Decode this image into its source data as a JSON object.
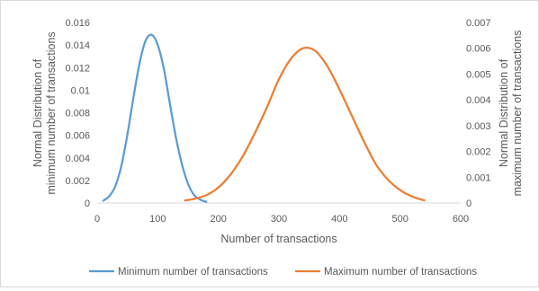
{
  "chart_data": {
    "type": "line",
    "title": "",
    "xlabel": "Number of transactions",
    "ylabel": "Normal Distribution of minimum number of transactions",
    "y2label": "Normal Distribution of maximum number of transactions",
    "xlim": [
      0,
      600
    ],
    "ylim": [
      0,
      0.016
    ],
    "y2lim": [
      0,
      0.007
    ],
    "x_ticks": [
      "0",
      "100",
      "200",
      "300",
      "400",
      "500",
      "600"
    ],
    "y_ticks": [
      "0",
      "0.002",
      "0.004",
      "0.006",
      "0.008",
      "0.01",
      "0.012",
      "0.014",
      "0.016"
    ],
    "y2_ticks": [
      "0",
      "0.001",
      "0.002",
      "0.003",
      "0.004",
      "0.005",
      "0.006",
      "0.007"
    ],
    "grid": false,
    "legend_position": "bottom",
    "series": [
      {
        "name": "Minimum number of transactions",
        "axis": "left",
        "color": "#5b9bd5",
        "x": [
          10,
          20,
          30,
          40,
          50,
          60,
          70,
          80,
          90,
          100,
          110,
          120,
          130,
          140,
          150,
          160,
          170,
          180
        ],
        "y": [
          0.0002,
          0.0006,
          0.0015,
          0.0033,
          0.0061,
          0.0094,
          0.0124,
          0.0144,
          0.0149,
          0.014,
          0.0119,
          0.0088,
          0.0058,
          0.0034,
          0.0017,
          0.0007,
          0.0003,
          0.0001
        ]
      },
      {
        "name": "Maximum number of transactions",
        "axis": "right",
        "color": "#ed7d31",
        "x": [
          145,
          160,
          180,
          200,
          220,
          240,
          260,
          280,
          300,
          320,
          340,
          360,
          380,
          400,
          420,
          440,
          460,
          480,
          500,
          520,
          540
        ],
        "y": [
          0.0001,
          0.00016,
          0.0003,
          0.0006,
          0.0011,
          0.0018,
          0.0027,
          0.0037,
          0.0048,
          0.0056,
          0.006,
          0.0059,
          0.0053,
          0.0044,
          0.0034,
          0.0024,
          0.0015,
          0.0009,
          0.0005,
          0.00025,
          0.0001
        ]
      }
    ]
  }
}
